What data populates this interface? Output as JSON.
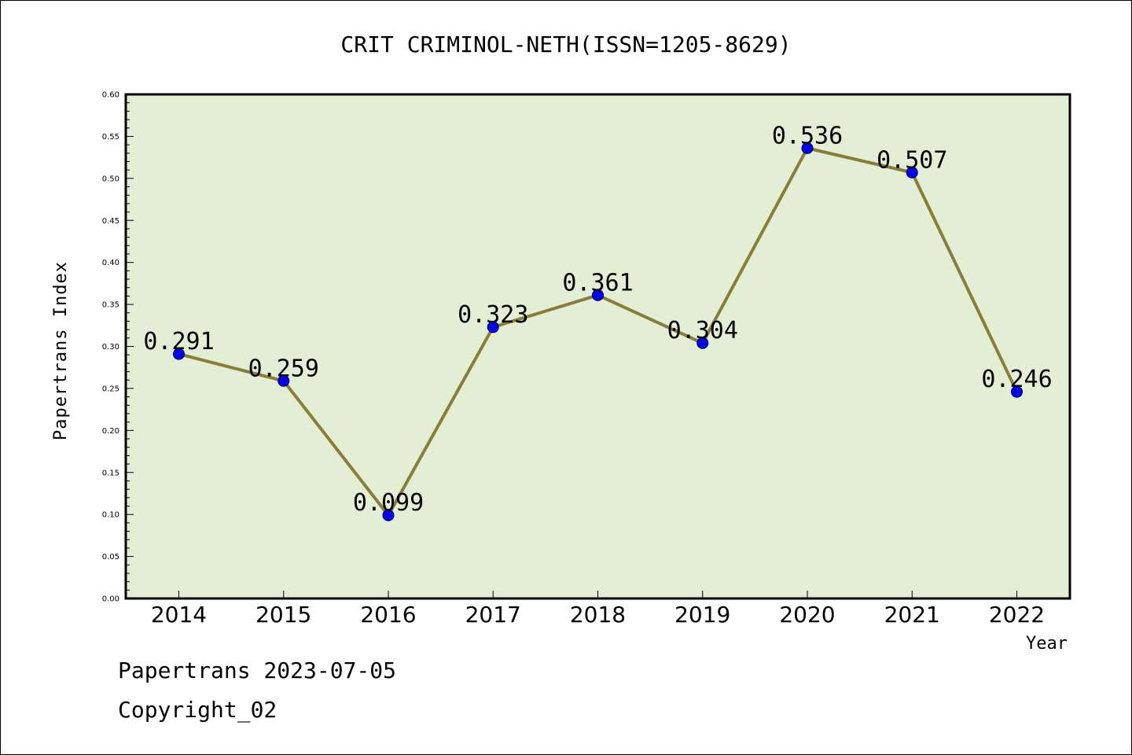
{
  "chart_data": {
    "type": "line",
    "title": "CRIT CRIMINOL-NETH(ISSN=1205-8629)",
    "xlabel": "Year",
    "ylabel": "Papertrans Index",
    "categories": [
      "2014",
      "2015",
      "2016",
      "2017",
      "2018",
      "2019",
      "2020",
      "2021",
      "2022"
    ],
    "values": [
      0.291,
      0.259,
      0.099,
      0.323,
      0.361,
      0.304,
      0.536,
      0.507,
      0.246
    ],
    "data_labels": [
      "0.291",
      "0.259",
      "0.099",
      "0.323",
      "0.361",
      "0.304",
      "0.536",
      "0.507",
      "0.246"
    ],
    "ylim": [
      0,
      0.6
    ],
    "yticks": [
      "0.00",
      "0.05",
      "0.10",
      "0.15",
      "0.20",
      "0.25",
      "0.30",
      "0.35",
      "0.40",
      "0.45",
      "0.50",
      "0.55",
      "0.60"
    ],
    "grid": false,
    "colors": {
      "plot_background": "#e2efd5",
      "line": "#8b7d35",
      "marker": "#0000ff"
    }
  },
  "footer": {
    "date_text": "Papertrans 2023-07-05",
    "copyright_text": "Copyright_02"
  }
}
